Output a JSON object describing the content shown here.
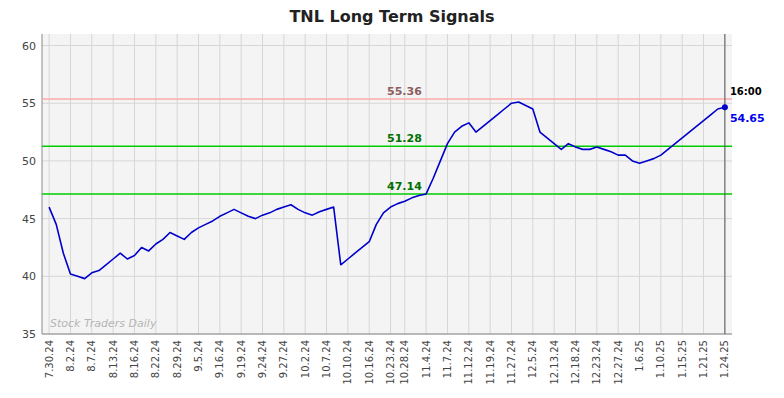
{
  "chart_data": {
    "type": "line",
    "title": "TNL Long Term Signals",
    "categories": [
      "7.30.24",
      null,
      null,
      "8.2.24",
      null,
      null,
      "8.7.24",
      null,
      null,
      "8.13.24",
      null,
      null,
      "8.16.24",
      null,
      null,
      "8.22.24",
      null,
      null,
      "8.29.24",
      null,
      null,
      "9.5.24",
      null,
      null,
      "9.16.24",
      null,
      null,
      "9.19.24",
      null,
      null,
      "9.24.24",
      null,
      null,
      "9.27.24",
      null,
      null,
      "10.2.24",
      null,
      null,
      "10.7.24",
      null,
      null,
      "10.10.24",
      null,
      null,
      "10.16.24",
      null,
      null,
      "10.23.24",
      null,
      "10.28.24",
      null,
      null,
      "11.4.24",
      null,
      null,
      "11.7.24",
      null,
      null,
      "11.12.24",
      null,
      null,
      "11.19.24",
      null,
      null,
      "11.27.24",
      null,
      null,
      "12.5.24",
      null,
      null,
      "12.13.24",
      null,
      null,
      "12.18.24",
      null,
      null,
      "12.23.24",
      null,
      null,
      "12.27.24",
      null,
      null,
      "1.6.25",
      null,
      null,
      "1.10.25",
      null,
      null,
      "1.15.25",
      null,
      null,
      "1.21.25",
      null,
      null,
      "1.24.25"
    ],
    "values": [
      46.0,
      44.5,
      42.0,
      40.2,
      40.0,
      39.8,
      40.3,
      40.5,
      41.0,
      41.5,
      42.0,
      41.5,
      41.8,
      42.5,
      42.2,
      42.8,
      43.2,
      43.8,
      43.5,
      43.2,
      43.8,
      44.2,
      44.5,
      44.8,
      45.2,
      45.5,
      45.8,
      45.5,
      45.2,
      45.0,
      45.3,
      45.5,
      45.8,
      46.0,
      46.2,
      45.8,
      45.5,
      45.3,
      45.6,
      45.8,
      46.0,
      41.0,
      41.5,
      42.0,
      42.5,
      43.0,
      44.5,
      45.5,
      46.0,
      46.3,
      46.5,
      46.8,
      47.0,
      47.14,
      48.5,
      50.0,
      51.5,
      52.5,
      53.0,
      53.3,
      52.5,
      53.0,
      53.5,
      54.0,
      54.5,
      55.0,
      55.1,
      54.8,
      54.5,
      52.5,
      52.0,
      51.5,
      51.0,
      51.5,
      51.2,
      51.0,
      51.0,
      51.2,
      51.0,
      50.8,
      50.5,
      50.5,
      50.0,
      49.8,
      50.0,
      50.2,
      50.5,
      51.0,
      51.5,
      52.0,
      52.5,
      53.0,
      53.5,
      54.0,
      54.5,
      54.65
    ],
    "color": "#0000cc",
    "ylim": [
      35,
      61
    ],
    "yticks": [
      35,
      40,
      45,
      50,
      55,
      60
    ],
    "grid": true,
    "reference_lines": [
      {
        "value": 55.36,
        "color": "#ffaaaa"
      },
      {
        "value": 51.28,
        "color": "#00cc00"
      },
      {
        "value": 47.14,
        "color": "#00cc00"
      }
    ],
    "end_time_label": "16:00",
    "watermark": "Stock Traders Daily"
  }
}
